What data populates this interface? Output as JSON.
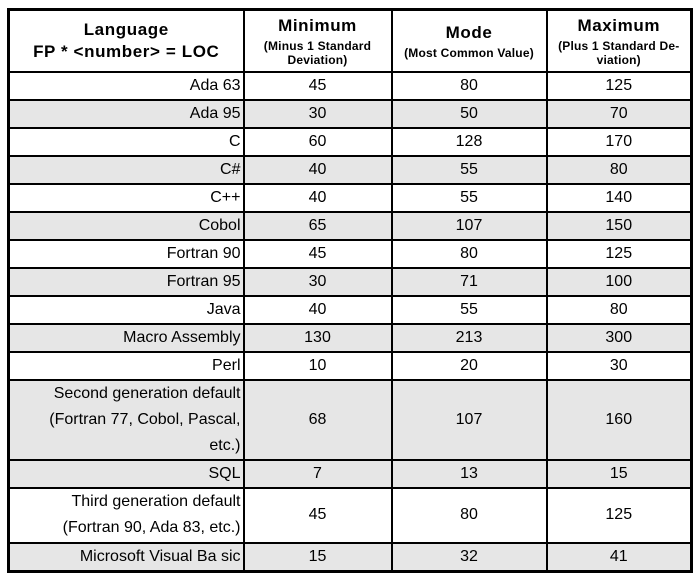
{
  "table": {
    "header": {
      "col1": {
        "title": "Language",
        "subtitle": "FP * <number> = LOC"
      },
      "col2": {
        "title": "Minimum",
        "subtitle": "(Minus 1 Standard\nDeviation)"
      },
      "col3": {
        "title": "Mode",
        "subtitle": "(Most Common Value)"
      },
      "col4": {
        "title": "Maximum",
        "subtitle": "(Plus 1 Standard De-\nviation)"
      }
    },
    "rows": [
      {
        "language": "Ada 63",
        "minimum": "45",
        "mode": "80",
        "maximum": "125",
        "shaded": false
      },
      {
        "language": "Ada 95",
        "minimum": "30",
        "mode": "50",
        "maximum": "70",
        "shaded": true
      },
      {
        "language": "C",
        "minimum": "60",
        "mode": "128",
        "maximum": "170",
        "shaded": false
      },
      {
        "language": "C#",
        "minimum": "40",
        "mode": "55",
        "maximum": "80",
        "shaded": true
      },
      {
        "language": "C++",
        "minimum": "40",
        "mode": "55",
        "maximum": "140",
        "shaded": false
      },
      {
        "language": "Cobol",
        "minimum": "65",
        "mode": "107",
        "maximum": "150",
        "shaded": true
      },
      {
        "language": "Fortran 90",
        "minimum": "45",
        "mode": "80",
        "maximum": "125",
        "shaded": false
      },
      {
        "language": "Fortran 95",
        "minimum": "30",
        "mode": "71",
        "maximum": "100",
        "shaded": true
      },
      {
        "language": "Java",
        "minimum": "40",
        "mode": "55",
        "maximum": "80",
        "shaded": false
      },
      {
        "language": "Macro Assembly",
        "minimum": "130",
        "mode": "213",
        "maximum": "300",
        "shaded": true
      },
      {
        "language": "Perl",
        "minimum": "10",
        "mode": "20",
        "maximum": "30",
        "shaded": false
      },
      {
        "language": "Second generation default\n(Fortran 77, Cobol, Pascal,\netc.)",
        "minimum": "68",
        "mode": "107",
        "maximum": "160",
        "shaded": true
      },
      {
        "language": "SQL",
        "minimum": "7",
        "mode": "13",
        "maximum": "15",
        "shaded": true
      },
      {
        "language": "Third generation default\n(Fortran 90, Ada 83, etc.)",
        "minimum": "45",
        "mode": "80",
        "maximum": "125",
        "shaded": false
      },
      {
        "language": "Microsoft Visual Ba sic",
        "minimum": "15",
        "mode": "32",
        "maximum": "41",
        "shaded": true
      }
    ],
    "colors": {
      "row_shade": "#e6e6e6",
      "border": "#000000",
      "text": "#000000",
      "background": "#ffffff"
    }
  }
}
